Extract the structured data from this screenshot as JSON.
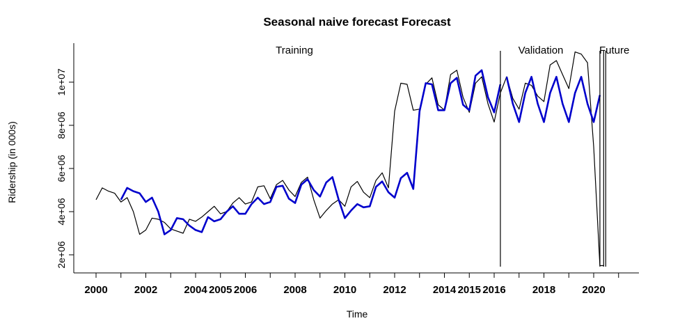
{
  "chart_data": {
    "type": "line",
    "title": "Seasonal naive forecast Forecast",
    "xlabel": "Time",
    "ylabel": "Ridership (in 000s)",
    "xlim": [
      1999.2,
      2021.8
    ],
    "ylim": [
      1500000,
      11800000
    ],
    "x_ticks": [
      2000,
      2002,
      2004,
      2005,
      2006,
      2008,
      2010,
      2012,
      2014,
      2015,
      2016,
      2018,
      2020
    ],
    "y_ticks": [
      2000000,
      4000000,
      6000000,
      8000000,
      10000000
    ],
    "y_tick_labels": [
      "2e+06",
      "4e+06",
      "6e+06",
      "8e+06",
      "1e+07"
    ],
    "grid": false,
    "legend": "none",
    "period_markers": [
      {
        "label": "Training",
        "x": 2016.25
      },
      {
        "label": "Validation",
        "x": 2020.25
      },
      {
        "label": "Future",
        "x": 2020.4
      }
    ],
    "series": [
      {
        "color": "#000000",
        "points": [
          [
            2000.0,
            4550000
          ],
          [
            2000.25,
            5100000
          ],
          [
            2000.5,
            4950000
          ],
          [
            2000.75,
            4850000
          ],
          [
            2001.0,
            4450000
          ],
          [
            2001.25,
            4650000
          ],
          [
            2001.5,
            4000000
          ],
          [
            2001.75,
            2950000
          ],
          [
            2002.0,
            3150000
          ],
          [
            2002.25,
            3700000
          ],
          [
            2002.5,
            3650000
          ],
          [
            2002.75,
            3500000
          ],
          [
            2003.0,
            3200000
          ],
          [
            2003.25,
            3100000
          ],
          [
            2003.5,
            3000000
          ],
          [
            2003.75,
            3650000
          ],
          [
            2004.0,
            3550000
          ],
          [
            2004.25,
            3750000
          ],
          [
            2004.5,
            4000000
          ],
          [
            2004.75,
            4250000
          ],
          [
            2005.0,
            3900000
          ],
          [
            2005.25,
            4000000
          ],
          [
            2005.5,
            4400000
          ],
          [
            2005.75,
            4650000
          ],
          [
            2006.0,
            4350000
          ],
          [
            2006.25,
            4450000
          ],
          [
            2006.5,
            5150000
          ],
          [
            2006.75,
            5200000
          ],
          [
            2007.0,
            4600000
          ],
          [
            2007.25,
            5250000
          ],
          [
            2007.5,
            5450000
          ],
          [
            2007.75,
            5000000
          ],
          [
            2008.0,
            4700000
          ],
          [
            2008.25,
            5350000
          ],
          [
            2008.5,
            5600000
          ],
          [
            2008.75,
            4550000
          ],
          [
            2009.0,
            3700000
          ],
          [
            2009.25,
            4050000
          ],
          [
            2009.5,
            4350000
          ],
          [
            2009.75,
            4550000
          ],
          [
            2010.0,
            4250000
          ],
          [
            2010.25,
            5150000
          ],
          [
            2010.5,
            5400000
          ],
          [
            2010.75,
            4900000
          ],
          [
            2011.0,
            4650000
          ],
          [
            2011.25,
            5450000
          ],
          [
            2011.5,
            5800000
          ],
          [
            2011.75,
            5100000
          ],
          [
            2012.0,
            8650000
          ],
          [
            2012.25,
            9950000
          ],
          [
            2012.5,
            9900000
          ],
          [
            2012.75,
            8700000
          ],
          [
            2013.0,
            8750000
          ],
          [
            2013.25,
            9900000
          ],
          [
            2013.5,
            10200000
          ],
          [
            2013.75,
            8950000
          ],
          [
            2014.0,
            8700000
          ],
          [
            2014.25,
            10350000
          ],
          [
            2014.5,
            10550000
          ],
          [
            2014.75,
            9300000
          ],
          [
            2015.0,
            8600000
          ],
          [
            2015.25,
            9950000
          ],
          [
            2015.5,
            10250000
          ],
          [
            2015.75,
            9000000
          ],
          [
            2016.0,
            8150000
          ],
          [
            2016.25,
            9500000
          ],
          [
            2016.5,
            10250000
          ],
          [
            2016.75,
            9250000
          ],
          [
            2017.0,
            8750000
          ],
          [
            2017.25,
            9950000
          ],
          [
            2017.5,
            9850000
          ],
          [
            2017.75,
            9350000
          ],
          [
            2018.0,
            9100000
          ],
          [
            2018.25,
            10800000
          ],
          [
            2018.5,
            11000000
          ],
          [
            2018.75,
            10350000
          ],
          [
            2019.0,
            9700000
          ],
          [
            2019.25,
            11400000
          ],
          [
            2019.5,
            11300000
          ],
          [
            2019.75,
            10900000
          ],
          [
            2020.0,
            7000000
          ],
          [
            2020.25,
            1500000
          ],
          [
            2020.4,
            1500000
          ]
        ]
      },
      {
        "color": "#0000cc",
        "points": [
          [
            2001.0,
            4550000
          ],
          [
            2001.25,
            5100000
          ],
          [
            2001.5,
            4950000
          ],
          [
            2001.75,
            4850000
          ],
          [
            2002.0,
            4450000
          ],
          [
            2002.25,
            4650000
          ],
          [
            2002.5,
            4000000
          ],
          [
            2002.75,
            2950000
          ],
          [
            2003.0,
            3150000
          ],
          [
            2003.25,
            3700000
          ],
          [
            2003.5,
            3650000
          ],
          [
            2003.75,
            3350000
          ],
          [
            2004.0,
            3150000
          ],
          [
            2004.25,
            3050000
          ],
          [
            2004.5,
            3750000
          ],
          [
            2004.75,
            3550000
          ],
          [
            2005.0,
            3650000
          ],
          [
            2005.25,
            4000000
          ],
          [
            2005.5,
            4250000
          ],
          [
            2005.75,
            3900000
          ],
          [
            2006.0,
            3900000
          ],
          [
            2006.25,
            4350000
          ],
          [
            2006.5,
            4650000
          ],
          [
            2006.75,
            4350000
          ],
          [
            2007.0,
            4450000
          ],
          [
            2007.25,
            5150000
          ],
          [
            2007.5,
            5200000
          ],
          [
            2007.75,
            4600000
          ],
          [
            2008.0,
            4400000
          ],
          [
            2008.25,
            5250000
          ],
          [
            2008.5,
            5500000
          ],
          [
            2008.75,
            5000000
          ],
          [
            2009.0,
            4700000
          ],
          [
            2009.25,
            5350000
          ],
          [
            2009.5,
            5600000
          ],
          [
            2009.75,
            4550000
          ],
          [
            2010.0,
            3700000
          ],
          [
            2010.25,
            4050000
          ],
          [
            2010.5,
            4350000
          ],
          [
            2010.75,
            4200000
          ],
          [
            2011.0,
            4250000
          ],
          [
            2011.25,
            5150000
          ],
          [
            2011.5,
            5400000
          ],
          [
            2011.75,
            4900000
          ],
          [
            2012.0,
            4650000
          ],
          [
            2012.25,
            5550000
          ],
          [
            2012.5,
            5800000
          ],
          [
            2012.75,
            5050000
          ],
          [
            2013.0,
            8650000
          ],
          [
            2013.25,
            9950000
          ],
          [
            2013.5,
            9900000
          ],
          [
            2013.75,
            8700000
          ],
          [
            2014.0,
            8700000
          ],
          [
            2014.25,
            9950000
          ],
          [
            2014.5,
            10200000
          ],
          [
            2014.75,
            8950000
          ],
          [
            2015.0,
            8700000
          ],
          [
            2015.25,
            10300000
          ],
          [
            2015.5,
            10550000
          ],
          [
            2015.75,
            9300000
          ],
          [
            2016.0,
            8600000
          ],
          [
            2016.25,
            9900000
          ]
        ]
      },
      {
        "color": "#0000cc",
        "points": [
          [
            2016.5,
            10250000
          ],
          [
            2016.75,
            9000000
          ],
          [
            2017.0,
            8150000
          ],
          [
            2017.25,
            9500000
          ],
          [
            2017.5,
            10250000
          ],
          [
            2017.75,
            9000000
          ],
          [
            2018.0,
            8150000
          ],
          [
            2018.25,
            9500000
          ],
          [
            2018.5,
            10250000
          ],
          [
            2018.75,
            9000000
          ],
          [
            2019.0,
            8150000
          ],
          [
            2019.25,
            9500000
          ],
          [
            2019.5,
            10250000
          ],
          [
            2019.75,
            9000000
          ],
          [
            2020.0,
            8150000
          ],
          [
            2020.25,
            9400000
          ]
        ]
      }
    ]
  }
}
